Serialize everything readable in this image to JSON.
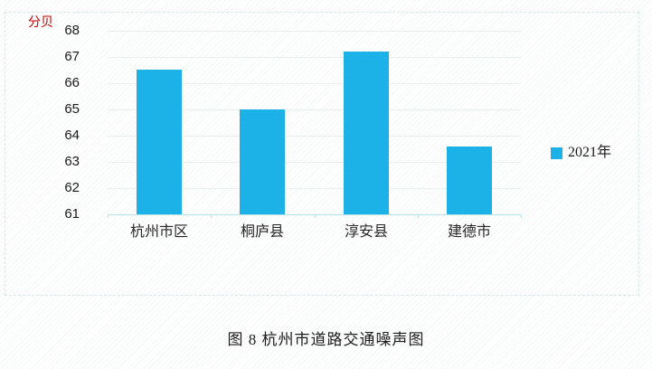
{
  "chart_data": {
    "type": "bar",
    "title": "图 8 杭州市道路交通噪声图",
    "ylabel": "分贝",
    "xlabel": "",
    "categories": [
      "杭州市区",
      "桐庐县",
      "淳安县",
      "建德市"
    ],
    "series": [
      {
        "name": "2021年",
        "values": [
          66.5,
          65.0,
          67.2,
          63.6
        ]
      }
    ],
    "ylim": [
      61,
      68
    ],
    "yticks": [
      61,
      62,
      63,
      64,
      65,
      66,
      67,
      68
    ],
    "grid": true,
    "legend_position": "right",
    "colors": {
      "bar": "#1cb2e8",
      "unit_label": "#c00000",
      "gridline": "#e9eeee",
      "axis": "#b7e2ec"
    }
  }
}
